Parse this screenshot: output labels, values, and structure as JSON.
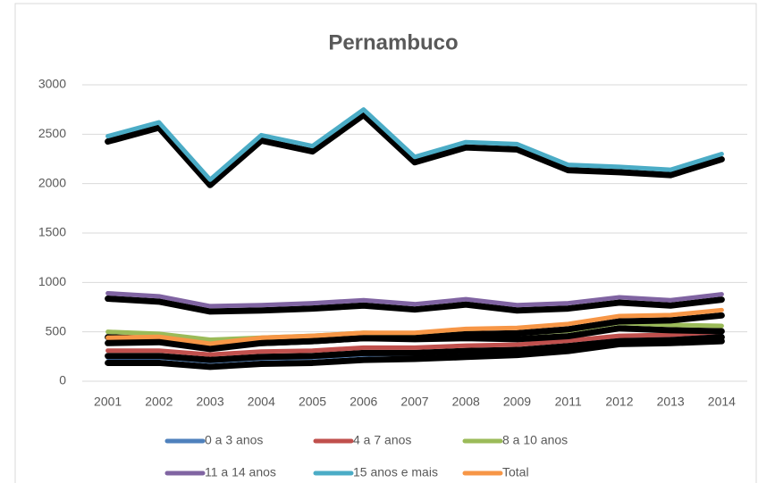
{
  "chart_data": {
    "type": "line",
    "title": "Pernambuco",
    "categories": [
      "2001",
      "2002",
      "2003",
      "2004",
      "2005",
      "2006",
      "2007",
      "2008",
      "2009",
      "2011",
      "2012",
      "2013",
      "2014"
    ],
    "series": [
      {
        "name": "0 a 3 anos",
        "color": "#4f81bd",
        "values": [
          240,
          240,
          200,
          230,
          240,
          270,
          280,
          300,
          320,
          360,
          430,
          440,
          460
        ]
      },
      {
        "name": "4 a 7 anos",
        "color": "#c0504d",
        "values": [
          310,
          310,
          270,
          300,
          310,
          340,
          340,
          360,
          370,
          410,
          460,
          470,
          500
        ]
      },
      {
        "name": "8 a 10 anos",
        "color": "#9bbb59",
        "values": [
          500,
          480,
          420,
          440,
          460,
          490,
          480,
          490,
          480,
          510,
          590,
          570,
          560
        ]
      },
      {
        "name": "11 a 14 anos",
        "color": "#8064a2",
        "values": [
          890,
          860,
          760,
          770,
          790,
          820,
          780,
          830,
          770,
          790,
          850,
          820,
          880
        ]
      },
      {
        "name": "15 anos e mais",
        "color": "#4bacc6",
        "values": [
          2480,
          2620,
          2040,
          2490,
          2380,
          2750,
          2270,
          2420,
          2400,
          2190,
          2170,
          2140,
          2300
        ]
      },
      {
        "name": "Total",
        "color": "#f79646",
        "values": [
          440,
          450,
          380,
          440,
          460,
          490,
          490,
          530,
          540,
          580,
          660,
          670,
          720
        ]
      }
    ],
    "ylim": [
      0,
      3000
    ],
    "yticks": [
      0,
      500,
      1000,
      1500,
      2000,
      2500,
      3000
    ],
    "grid": true,
    "legend": "bottom"
  }
}
